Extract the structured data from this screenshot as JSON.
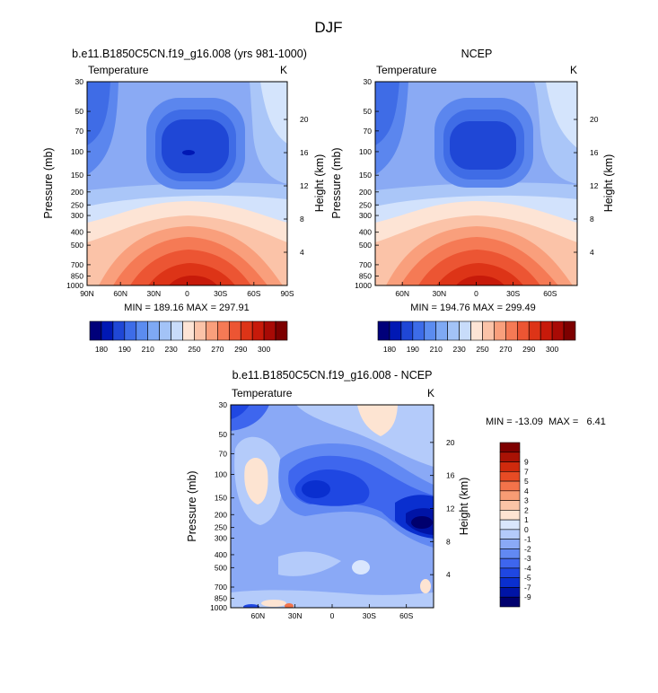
{
  "figure": {
    "title": "DJF"
  },
  "chart_data": [
    {
      "type": "heatmap",
      "title": "b.e11.B1850C5CN.f19_g16.008 (yrs 981-1000)",
      "left_string": "Temperature",
      "right_string": "K",
      "ylabel": "Pressure (mb)",
      "ylabel_right": "Height (km)",
      "x_ticks": [
        "90N",
        "60N",
        "30N",
        "0",
        "30S",
        "60S",
        "90S"
      ],
      "x_values": [
        90,
        60,
        30,
        0,
        -30,
        -60,
        -90
      ],
      "y_ticks": [
        "30",
        "50",
        "70",
        "100",
        "150",
        "200",
        "250",
        "300",
        "400",
        "500",
        "700",
        "850",
        "1000"
      ],
      "y_values": [
        30,
        50,
        70,
        100,
        150,
        200,
        250,
        300,
        400,
        500,
        700,
        850,
        1000
      ],
      "height_ticks": [
        "4",
        "8",
        "12",
        "16",
        "20"
      ],
      "height_values": [
        4,
        8,
        12,
        16,
        20
      ],
      "min_max_text": "MIN = 189.16  MAX = 297.91",
      "min": 189.16,
      "max": 297.91
    },
    {
      "type": "heatmap",
      "title": "NCEP",
      "left_string": "Temperature",
      "right_string": "K",
      "ylabel": "Pressure (mb)",
      "ylabel_right": "Height (km)",
      "x_ticks": [
        "60N",
        "30N",
        "0",
        "30S",
        "60S"
      ],
      "x_values": [
        60,
        30,
        0,
        -30,
        -60
      ],
      "y_ticks": [
        "30",
        "50",
        "70",
        "100",
        "150",
        "200",
        "250",
        "300",
        "400",
        "500",
        "700",
        "850",
        "1000"
      ],
      "y_values": [
        30,
        50,
        70,
        100,
        150,
        200,
        250,
        300,
        400,
        500,
        700,
        850,
        1000
      ],
      "height_ticks": [
        "4",
        "8",
        "12",
        "16",
        "20"
      ],
      "height_values": [
        4,
        8,
        12,
        16,
        20
      ],
      "min_max_text": "MIN = 194.76  MAX = 299.49",
      "min": 194.76,
      "max": 299.49
    },
    {
      "type": "heatmap",
      "title": "b.e11.B1850C5CN.f19_g16.008 - NCEP",
      "left_string": "Temperature",
      "right_string": "K",
      "ylabel": "Pressure (mb)",
      "ylabel_right": "Height (km)",
      "x_ticks": [
        "60N",
        "30N",
        "0",
        "30S",
        "60S"
      ],
      "x_values": [
        60,
        30,
        0,
        -30,
        -60
      ],
      "y_ticks": [
        "30",
        "50",
        "70",
        "100",
        "150",
        "200",
        "250",
        "300",
        "400",
        "500",
        "700",
        "850",
        "1000"
      ],
      "y_values": [
        30,
        50,
        70,
        100,
        150,
        200,
        250,
        300,
        400,
        500,
        700,
        850,
        1000
      ],
      "height_ticks": [
        "4",
        "8",
        "12",
        "16",
        "20"
      ],
      "height_values": [
        4,
        8,
        12,
        16,
        20
      ],
      "min_max_text": "MIN = -13.09  MAX =   6.41",
      "min": -13.09,
      "max": 6.41
    }
  ],
  "colorbars": {
    "abs": {
      "labels": [
        "180",
        "190",
        "210",
        "230",
        "250",
        "270",
        "290",
        "300"
      ],
      "colors": [
        "#00007a",
        "#0018b4",
        "#1f47d6",
        "#3d6ce8",
        "#5b8cf0",
        "#7ea9f4",
        "#a3c3f7",
        "#c8dcfa",
        "#fde4d5",
        "#fbc3a8",
        "#f99f7c",
        "#f57a55",
        "#ec5533",
        "#dd3417",
        "#c71a0a",
        "#a80a05",
        "#7d0000"
      ]
    },
    "diff": {
      "labels": [
        "-9",
        "-7",
        "-5",
        "-4",
        "-3",
        "-2",
        "-1",
        "0",
        "1",
        "2",
        "3",
        "4",
        "5",
        "7",
        "9"
      ],
      "colors": [
        "#00006e",
        "#0014a6",
        "#0a2fcf",
        "#1f47e2",
        "#3e66ee",
        "#6289f3",
        "#8aa9f6",
        "#b4cbfa",
        "#d9e6fd",
        "#fde4d2",
        "#fbc4a6",
        "#f89c74",
        "#f3734a",
        "#e74b24",
        "#cf2a0d",
        "#a91205",
        "#7e0000"
      ]
    }
  }
}
